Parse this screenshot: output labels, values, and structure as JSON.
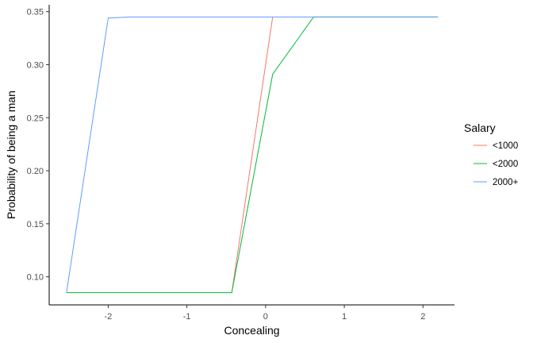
{
  "chart_data": {
    "type": "line",
    "xlabel": "Concealing",
    "ylabel": "Probability of being a man",
    "xlim": [
      -2.75,
      2.4
    ],
    "ylim": [
      0.0735,
      0.3565
    ],
    "x_ticks": [
      -2,
      -1,
      0,
      1,
      2
    ],
    "x_tick_labels": [
      "-2",
      "-1",
      "0",
      "1",
      "2"
    ],
    "y_ticks": [
      0.1,
      0.15,
      0.2,
      0.25,
      0.3,
      0.35
    ],
    "y_tick_labels": [
      "0.10",
      "0.15",
      "0.20",
      "0.25",
      "0.30",
      "0.35"
    ],
    "grid": false,
    "legend": {
      "title": "Salary",
      "position": "right"
    },
    "series": [
      {
        "name": "<1000",
        "color": "#F8766D",
        "points": [
          [
            -0.43,
            0.085
          ],
          [
            0.09,
            0.345
          ]
        ]
      },
      {
        "name": "<2000",
        "color": "#00BA38",
        "points": [
          [
            -2.53,
            0.085
          ],
          [
            -0.43,
            0.085
          ],
          [
            0.09,
            0.291
          ],
          [
            0.61,
            0.345
          ],
          [
            2.19,
            0.345
          ]
        ]
      },
      {
        "name": "2000+",
        "color": "#619CFF",
        "points": [
          [
            -2.53,
            0.085
          ],
          [
            -2.0,
            0.344
          ],
          [
            -1.72,
            0.345
          ],
          [
            2.19,
            0.345
          ]
        ]
      }
    ]
  }
}
